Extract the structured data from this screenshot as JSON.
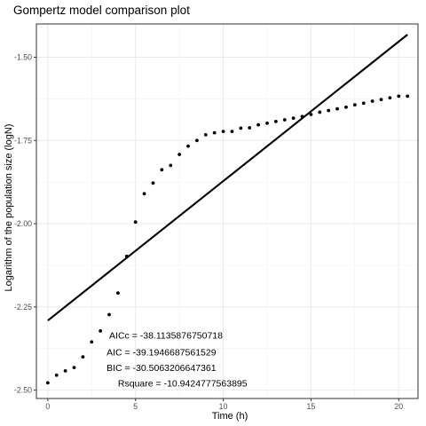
{
  "chart_data": {
    "type": "scatter",
    "title": "Gompertz model comparison plot",
    "xlabel": "Time (h)",
    "ylabel": "Logarithm of the population size (logN)",
    "xlim": [
      -0.65,
      21.1
    ],
    "ylim": [
      -2.525,
      -1.4
    ],
    "grid": true,
    "x_ticks": [
      0,
      5,
      10,
      15,
      20
    ],
    "x_tick_labels": [
      "0",
      "5",
      "10",
      "15",
      "20"
    ],
    "y_ticks": [
      -2.5,
      -2.25,
      -2.0,
      -1.75,
      -1.5
    ],
    "y_tick_labels": [
      "-2.50",
      "-2.25",
      "-2.00",
      "-1.75",
      "-1.50"
    ],
    "series": [
      {
        "kind": "points",
        "color": "#000000",
        "x": [
          0,
          0.5,
          1,
          1.5,
          2,
          2.5,
          3,
          3.5,
          4,
          4.5,
          5,
          5.5,
          6,
          6.5,
          7,
          7.5,
          8,
          8.5,
          9,
          9.5,
          10,
          10.5,
          11,
          11.5,
          12,
          12.5,
          13,
          13.5,
          14,
          14.5,
          15,
          15.5,
          16,
          16.5,
          17,
          17.5,
          18,
          18.5,
          19,
          19.5,
          20,
          20.5
        ],
        "y": [
          -2.478,
          -2.455,
          -2.442,
          -2.432,
          -2.4,
          -2.355,
          -2.322,
          -2.273,
          -2.208,
          -2.098,
          -1.995,
          -1.91,
          -1.878,
          -1.838,
          -1.825,
          -1.792,
          -1.767,
          -1.75,
          -1.733,
          -1.727,
          -1.723,
          -1.723,
          -1.713,
          -1.712,
          -1.703,
          -1.698,
          -1.693,
          -1.688,
          -1.683,
          -1.678,
          -1.672,
          -1.665,
          -1.66,
          -1.655,
          -1.65,
          -1.643,
          -1.638,
          -1.632,
          -1.627,
          -1.622,
          -1.617,
          -1.617
        ]
      },
      {
        "kind": "line",
        "color": "#000000",
        "x": [
          0,
          20.5
        ],
        "y": [
          -2.291,
          -1.432
        ]
      }
    ],
    "annotations": [
      {
        "text": "AICc = -38.1135876750718",
        "x": 3.5,
        "y": -2.335
      },
      {
        "text": "AIC = -39.1946687561529",
        "x": 3.35,
        "y": -2.385
      },
      {
        "text": "BIC = -30.5063206647361",
        "x": 3.35,
        "y": -2.432
      },
      {
        "text": "Rsquare = -10.9424777563895",
        "x": 4.0,
        "y": -2.479
      }
    ]
  }
}
